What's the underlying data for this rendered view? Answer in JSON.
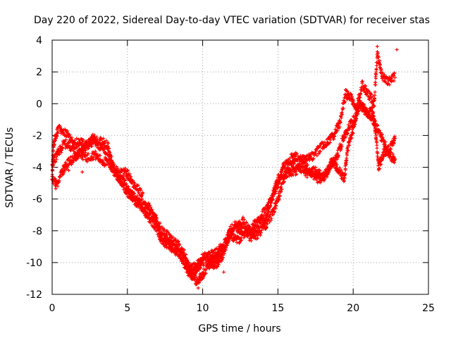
{
  "chart_data": {
    "type": "scatter",
    "title": "Day 220 of 2022, Sidereal Day-to-day VTEC variation (SDTVAR) for receiver stas",
    "xlabel": "GPS time / hours",
    "ylabel": "SDTVAR / TECUs",
    "xlim": [
      0,
      25
    ],
    "ylim": [
      -12,
      4
    ],
    "xticks": [
      0,
      5,
      10,
      15,
      20,
      25
    ],
    "yticks": [
      -12,
      -10,
      -8,
      -6,
      -4,
      -2,
      0,
      2,
      4
    ],
    "grid": true,
    "marker": "+",
    "color": "#ff0000",
    "series": [
      {
        "name": "SDTVAR",
        "approximate_traces": [
          [
            [
              0.0,
              -4.5
            ],
            [
              0.1,
              -2.5
            ],
            [
              0.4,
              -1.6
            ],
            [
              0.9,
              -1.8
            ],
            [
              1.4,
              -2.4
            ],
            [
              1.9,
              -2.4
            ],
            [
              2.3,
              -2.7
            ],
            [
              2.7,
              -2.2
            ],
            [
              3.3,
              -2.4
            ],
            [
              3.7,
              -2.6
            ],
            [
              4.0,
              -3.8
            ],
            [
              4.4,
              -4.4
            ],
            [
              4.9,
              -4.3
            ],
            [
              5.3,
              -4.9
            ],
            [
              5.8,
              -5.5
            ],
            [
              6.3,
              -6.4
            ],
            [
              6.8,
              -7.0
            ],
            [
              7.2,
              -8.2
            ],
            [
              7.6,
              -8.7
            ],
            [
              8.1,
              -9.2
            ],
            [
              8.6,
              -9.5
            ],
            [
              9.0,
              -10.2
            ],
            [
              9.3,
              -10.4
            ],
            [
              9.7,
              -10.1
            ],
            [
              10.1,
              -9.6
            ],
            [
              10.6,
              -9.8
            ],
            [
              11.0,
              -9.8
            ],
            [
              11.4,
              -9.2
            ],
            [
              11.8,
              -8.0
            ],
            [
              12.2,
              -7.6
            ],
            [
              12.7,
              -7.4
            ],
            [
              13.2,
              -8.1
            ],
            [
              13.7,
              -7.6
            ],
            [
              14.2,
              -7.2
            ],
            [
              14.6,
              -5.9
            ],
            [
              15.0,
              -4.8
            ],
            [
              15.4,
              -3.9
            ],
            [
              15.9,
              -3.4
            ],
            [
              16.3,
              -3.3
            ],
            [
              16.8,
              -3.6
            ],
            [
              17.3,
              -3.3
            ],
            [
              17.8,
              -2.8
            ],
            [
              18.3,
              -2.4
            ],
            [
              18.7,
              -2.0
            ],
            [
              19.1,
              -1.2
            ],
            [
              19.5,
              0.6
            ],
            [
              19.8,
              0.5
            ],
            [
              20.2,
              -0.3
            ],
            [
              20.6,
              1.2
            ],
            [
              21.0,
              0.6
            ],
            [
              21.4,
              0.1
            ],
            [
              21.6,
              3.2
            ],
            [
              21.9,
              1.8
            ],
            [
              22.3,
              1.4
            ],
            [
              22.8,
              1.7
            ]
          ],
          [
            [
              0.0,
              -4.6
            ],
            [
              0.3,
              -5.2
            ],
            [
              0.7,
              -4.2
            ],
            [
              1.1,
              -3.7
            ],
            [
              1.5,
              -3.4
            ],
            [
              1.9,
              -3.0
            ],
            [
              2.3,
              -2.6
            ],
            [
              2.8,
              -2.3
            ],
            [
              3.3,
              -2.8
            ],
            [
              3.8,
              -3.6
            ],
            [
              4.2,
              -4.2
            ],
            [
              4.6,
              -4.9
            ],
            [
              5.0,
              -5.6
            ],
            [
              5.4,
              -5.8
            ],
            [
              5.8,
              -6.2
            ],
            [
              6.3,
              -6.8
            ],
            [
              6.8,
              -7.2
            ],
            [
              7.3,
              -8.0
            ],
            [
              7.8,
              -8.4
            ],
            [
              8.3,
              -8.8
            ],
            [
              8.8,
              -9.5
            ],
            [
              9.2,
              -10.6
            ],
            [
              9.6,
              -11.2
            ],
            [
              10.0,
              -10.8
            ],
            [
              10.4,
              -10.1
            ],
            [
              10.9,
              -10.1
            ],
            [
              11.3,
              -9.6
            ],
            [
              11.7,
              -8.5
            ],
            [
              12.2,
              -7.8
            ],
            [
              12.7,
              -8.0
            ],
            [
              13.2,
              -8.4
            ],
            [
              13.7,
              -8.2
            ],
            [
              14.2,
              -7.6
            ],
            [
              14.7,
              -6.8
            ],
            [
              15.1,
              -5.7
            ],
            [
              15.5,
              -4.4
            ],
            [
              16.0,
              -3.7
            ],
            [
              16.5,
              -4.1
            ],
            [
              17.0,
              -4.4
            ],
            [
              17.5,
              -4.2
            ],
            [
              18.0,
              -4.6
            ],
            [
              18.5,
              -3.9
            ],
            [
              18.9,
              -3.4
            ],
            [
              19.3,
              -2.3
            ],
            [
              19.7,
              -1.5
            ],
            [
              20.1,
              -0.9
            ],
            [
              20.5,
              -0.1
            ],
            [
              20.9,
              -0.6
            ],
            [
              21.3,
              -0.5
            ],
            [
              21.5,
              -1.9
            ],
            [
              21.7,
              -4.0
            ],
            [
              22.0,
              -3.1
            ],
            [
              22.4,
              -2.9
            ],
            [
              22.8,
              -2.2
            ]
          ],
          [
            [
              0.0,
              -3.8
            ],
            [
              0.4,
              -3.1
            ],
            [
              0.8,
              -2.5
            ],
            [
              1.3,
              -2.7
            ],
            [
              1.8,
              -3.1
            ],
            [
              2.3,
              -3.4
            ],
            [
              2.8,
              -3.2
            ],
            [
              3.3,
              -3.6
            ],
            [
              3.8,
              -3.8
            ],
            [
              4.3,
              -4.6
            ],
            [
              4.8,
              -5.0
            ],
            [
              5.3,
              -5.9
            ],
            [
              5.8,
              -6.4
            ],
            [
              6.3,
              -7.0
            ],
            [
              6.8,
              -7.6
            ],
            [
              7.3,
              -8.6
            ],
            [
              7.8,
              -9.0
            ],
            [
              8.3,
              -9.1
            ],
            [
              8.8,
              -10.1
            ],
            [
              9.2,
              -10.9
            ],
            [
              9.6,
              -10.4
            ],
            [
              10.0,
              -10.0
            ],
            [
              10.5,
              -9.5
            ],
            [
              10.9,
              -9.4
            ],
            [
              11.3,
              -8.9
            ],
            [
              11.8,
              -8.2
            ],
            [
              12.3,
              -8.6
            ],
            [
              12.8,
              -8.3
            ],
            [
              13.3,
              -7.8
            ],
            [
              13.8,
              -7.1
            ],
            [
              14.3,
              -6.6
            ],
            [
              14.8,
              -5.5
            ],
            [
              15.2,
              -4.6
            ],
            [
              15.7,
              -4.3
            ],
            [
              16.2,
              -4.2
            ],
            [
              16.7,
              -3.8
            ],
            [
              17.2,
              -4.3
            ],
            [
              17.7,
              -4.8
            ],
            [
              18.2,
              -4.5
            ],
            [
              18.6,
              -3.6
            ],
            [
              19.0,
              -4.2
            ],
            [
              19.4,
              -4.7
            ],
            [
              19.6,
              -3.0
            ],
            [
              20.0,
              -1.6
            ],
            [
              20.4,
              0.0
            ],
            [
              20.8,
              -0.4
            ],
            [
              21.2,
              -0.8
            ],
            [
              21.6,
              -1.6
            ],
            [
              22.0,
              -2.3
            ],
            [
              22.4,
              -3.2
            ],
            [
              22.8,
              -3.6
            ]
          ]
        ],
        "outliers": [
          [
            22.9,
            3.4
          ],
          [
            21.6,
            3.6
          ],
          [
            11.4,
            -10.6
          ],
          [
            9.7,
            -11.6
          ],
          [
            1.1,
            -4.2
          ],
          [
            2.0,
            -4.3
          ]
        ]
      }
    ]
  }
}
